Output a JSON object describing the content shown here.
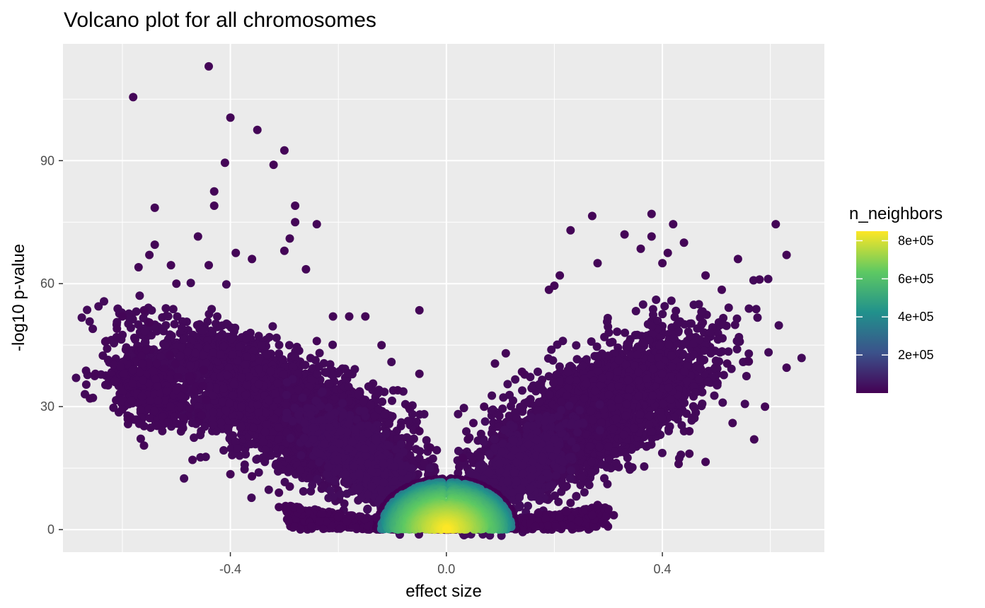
{
  "chart_data": {
    "type": "scatter",
    "title": "Volcano plot for all chromosomes",
    "xlabel": "effect size",
    "ylabel": "-log10 p-value",
    "xlim": [
      -0.71,
      0.7
    ],
    "ylim": [
      -5.5,
      118.5
    ],
    "x_ticks": [
      -0.4,
      0.0,
      0.4
    ],
    "x_tick_labels": [
      "-0.4",
      "0.0",
      "0.4"
    ],
    "x_minor_ticks": [
      -0.6,
      -0.2,
      0.2,
      0.6
    ],
    "y_ticks": [
      0,
      30,
      60,
      90
    ],
    "y_tick_labels": [
      "0",
      "30",
      "60",
      "90"
    ],
    "y_minor_ticks": [
      15,
      45,
      75,
      105
    ],
    "grid": true,
    "panel_background": "#ebebeb",
    "grid_color": "#ffffff",
    "legend": {
      "title": "n_neighbors",
      "placement": "right",
      "type": "colorbar",
      "range": [
        0,
        850000
      ],
      "ticks": [
        200000,
        400000,
        600000,
        800000
      ],
      "tick_labels": [
        "2e+05",
        "4e+05",
        "6e+05",
        "8e+05"
      ],
      "colormap": [
        "#440154",
        "#3b528b",
        "#21918c",
        "#5ec962",
        "#fde725"
      ]
    },
    "clusters": [
      {
        "kind": "band",
        "cx": -0.3,
        "cy": 29.5,
        "slope": -55,
        "sx": 0.12,
        "sy": 6.5,
        "n": 3500,
        "value": 20000
      },
      {
        "kind": "band",
        "cx": -0.55,
        "cy": 34.0,
        "slope": -40,
        "sx": 0.04,
        "sy": 4.0,
        "n": 400,
        "value": 15000
      },
      {
        "kind": "band",
        "cx": -0.16,
        "cy": 17.0,
        "slope": -80,
        "sx": 0.05,
        "sy": 4.5,
        "n": 700,
        "value": 30000
      },
      {
        "kind": "band",
        "cx": 0.28,
        "cy": 29.0,
        "slope": 62,
        "sx": 0.1,
        "sy": 6.5,
        "n": 3300,
        "value": 20000
      },
      {
        "kind": "band",
        "cx": 0.13,
        "cy": 14.0,
        "slope": 85,
        "sx": 0.05,
        "sy": 4.5,
        "n": 700,
        "value": 30000
      },
      {
        "kind": "core",
        "cx": 0.0,
        "rx": 0.13,
        "ry": 12.5,
        "n": 3200
      }
    ],
    "outliers": [
      [
        -0.44,
        113
      ],
      [
        -0.58,
        105.5
      ],
      [
        -0.4,
        100.5
      ],
      [
        -0.35,
        97.5
      ],
      [
        -0.3,
        92.5
      ],
      [
        -0.41,
        89.5
      ],
      [
        -0.32,
        89
      ],
      [
        -0.43,
        82.5
      ],
      [
        -0.43,
        79
      ],
      [
        -0.28,
        79
      ],
      [
        -0.54,
        78.5
      ],
      [
        -0.28,
        75
      ],
      [
        -0.24,
        74.5
      ],
      [
        -0.46,
        71.5
      ],
      [
        -0.29,
        71
      ],
      [
        -0.54,
        69.5
      ],
      [
        -0.39,
        67.5
      ],
      [
        -0.55,
        67
      ],
      [
        -0.36,
        66
      ],
      [
        -0.57,
        64
      ],
      [
        -0.51,
        64.5
      ],
      [
        -0.44,
        64.5
      ],
      [
        -0.5,
        60
      ],
      [
        -0.26,
        63.5
      ],
      [
        -0.3,
        68
      ],
      [
        -0.6,
        52
      ],
      [
        -0.63,
        46
      ],
      [
        -0.56,
        53.5
      ],
      [
        -0.55,
        50.5
      ],
      [
        -0.61,
        49
      ],
      [
        -0.66,
        32
      ],
      [
        -0.65,
        38
      ],
      [
        -0.59,
        27
      ],
      [
        -0.56,
        20.5
      ],
      [
        -0.47,
        17
      ],
      [
        -0.4,
        13.5
      ],
      [
        -0.31,
        9
      ],
      [
        -0.29,
        10.5
      ],
      [
        -0.31,
        5.5
      ],
      [
        -0.27,
        5
      ],
      [
        -0.15,
        52
      ],
      [
        -0.12,
        45
      ],
      [
        -0.09,
        34
      ],
      [
        -0.07,
        30
      ],
      [
        -0.05,
        24
      ],
      [
        -0.03,
        20
      ],
      [
        -0.05,
        53.5
      ],
      [
        -0.05,
        38
      ],
      [
        -0.24,
        46
      ],
      [
        -0.21,
        52
      ],
      [
        -0.18,
        52
      ],
      [
        -0.36,
        13
      ],
      [
        -0.23,
        4
      ],
      [
        -0.13,
        3
      ],
      [
        0.61,
        74.5
      ],
      [
        0.63,
        67
      ],
      [
        0.38,
        77
      ],
      [
        0.27,
        76.5
      ],
      [
        0.23,
        73
      ],
      [
        0.42,
        74.5
      ],
      [
        0.38,
        71.5
      ],
      [
        0.33,
        72
      ],
      [
        0.44,
        70
      ],
      [
        0.54,
        66
      ],
      [
        0.36,
        68.5
      ],
      [
        0.41,
        67.5
      ],
      [
        0.4,
        65
      ],
      [
        0.28,
        65
      ],
      [
        0.21,
        62
      ],
      [
        0.48,
        62
      ],
      [
        0.51,
        58.5
      ],
      [
        0.58,
        61
      ],
      [
        0.2,
        59.5
      ],
      [
        0.19,
        58.5
      ],
      [
        0.63,
        39.5
      ],
      [
        0.56,
        41
      ],
      [
        0.52,
        40.5
      ],
      [
        0.59,
        30
      ],
      [
        0.53,
        26
      ],
      [
        0.57,
        22
      ],
      [
        0.45,
        18.5
      ],
      [
        0.43,
        16
      ],
      [
        0.48,
        16.5
      ],
      [
        0.45,
        24
      ],
      [
        0.28,
        6
      ],
      [
        0.21,
        3
      ],
      [
        0.17,
        4
      ],
      [
        0.23,
        6.5
      ],
      [
        0.27,
        3.5
      ],
      [
        0.11,
        43
      ],
      [
        0.09,
        40.5
      ],
      [
        0.07,
        30
      ],
      [
        0.05,
        26
      ],
      [
        0.04,
        22
      ],
      [
        0.03,
        17.5
      ],
      [
        0.14,
        38.5
      ],
      [
        0.3,
        5
      ],
      [
        0.31,
        3.5
      ]
    ]
  }
}
